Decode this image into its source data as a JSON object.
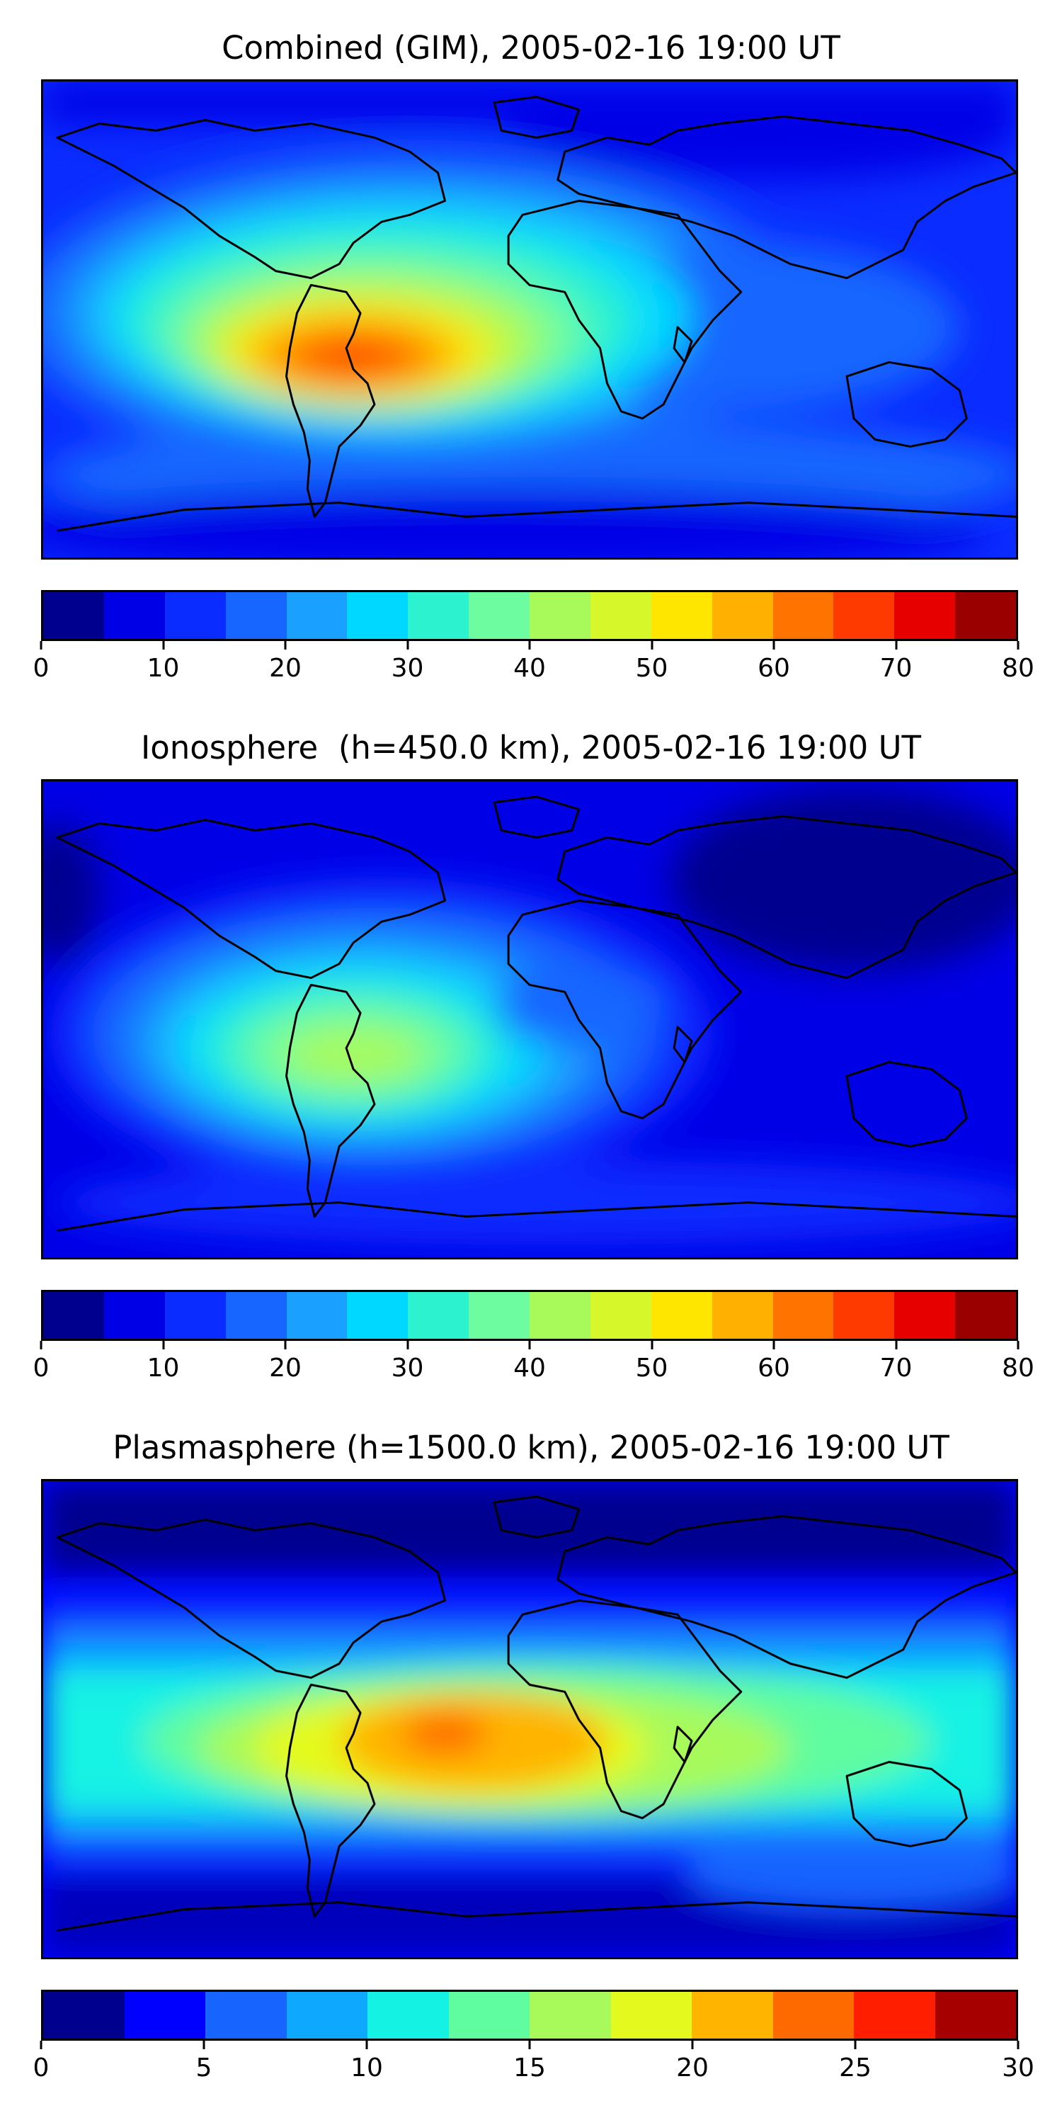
{
  "panels": [
    {
      "title": "Combined (GIM), 2005-02-16 19:00 UT",
      "colorbar": {
        "colors": [
          "#00008f",
          "#0000e6",
          "#0a2cff",
          "#1766ff",
          "#1aa0ff",
          "#00d8ff",
          "#2cf2cf",
          "#6efca0",
          "#a8fa5a",
          "#d6f72a",
          "#ffe600",
          "#ffb000",
          "#ff7400",
          "#ff3a00",
          "#e60000",
          "#9b0000"
        ],
        "tick_labels": [
          "0",
          "10",
          "20",
          "30",
          "40",
          "50",
          "60",
          "70",
          "80"
        ],
        "range": [
          0,
          80
        ]
      }
    },
    {
      "title": "Ionosphere  (h=450.0 km), 2005-02-16 19:00 UT",
      "colorbar": {
        "colors": [
          "#00008f",
          "#0000e6",
          "#0a2cff",
          "#1766ff",
          "#1aa0ff",
          "#00d8ff",
          "#2cf2cf",
          "#6efca0",
          "#a8fa5a",
          "#d6f72a",
          "#ffe600",
          "#ffb000",
          "#ff7400",
          "#ff3a00",
          "#e60000",
          "#9b0000"
        ],
        "tick_labels": [
          "0",
          "10",
          "20",
          "30",
          "40",
          "50",
          "60",
          "70",
          "80"
        ],
        "range": [
          0,
          80
        ]
      }
    },
    {
      "title": "Plasmasphere (h=1500.0 km), 2005-02-16 19:00 UT",
      "colorbar": {
        "colors": [
          "#00008f",
          "#0000ff",
          "#1764ff",
          "#0ea8ff",
          "#14f2e4",
          "#60fca0",
          "#a8fa5a",
          "#e4fa1e",
          "#ffb400",
          "#ff6a00",
          "#ff1e00",
          "#a60000"
        ],
        "tick_labels": [
          "0",
          "5",
          "10",
          "15",
          "20",
          "25",
          "30"
        ],
        "range": [
          0,
          30
        ]
      }
    }
  ]
}
